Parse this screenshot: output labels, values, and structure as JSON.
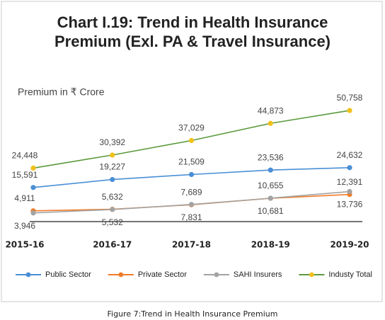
{
  "chart_data": {
    "type": "line",
    "title": [
      "Chart I.19: Trend in Health Insurance",
      "Premium (Exl. PA & Travel Insurance)"
    ],
    "unit_label": "Premium in ₹ Crore",
    "categories": [
      "2015-16",
      "2016-17",
      "2017-18",
      "2018-19",
      "2019-20"
    ],
    "ylim": [
      0,
      65000
    ],
    "series": [
      {
        "name": "Public Sector",
        "color": "#4a8fd6",
        "marker_color": "#4a8fd6",
        "values": [
          15591,
          19227,
          21509,
          23536,
          24632
        ],
        "value_labels": [
          "15,591",
          "19,227",
          "21,509",
          "23,536",
          "24,632"
        ]
      },
      {
        "name": "Private Sector",
        "color": "#f07c2a",
        "marker_color": "#f07c2a",
        "values": [
          4911,
          5632,
          7689,
          10655,
          12391
        ],
        "value_labels": [
          "4,911",
          "5,632",
          "7,689",
          "10,655",
          "12,391"
        ]
      },
      {
        "name": "SAHI Insurers",
        "color": "#a3a3a3",
        "marker_color": "#a3a3a3",
        "values": [
          3946,
          5532,
          7831,
          10681,
          13736
        ],
        "value_labels": [
          "3,946",
          "5,532",
          "7,831",
          "10,681",
          "13,736"
        ]
      },
      {
        "name": "Industy Total",
        "color": "#5b9a3c",
        "marker_color": "#f2c01a",
        "values": [
          24448,
          30392,
          37029,
          44873,
          50758
        ],
        "value_labels": [
          "24,448",
          "30,392",
          "37,029",
          "44,873",
          "50,758"
        ]
      }
    ],
    "legend": "bottom"
  },
  "caption": "Figure 7:Trend in Health Insurance Premium"
}
